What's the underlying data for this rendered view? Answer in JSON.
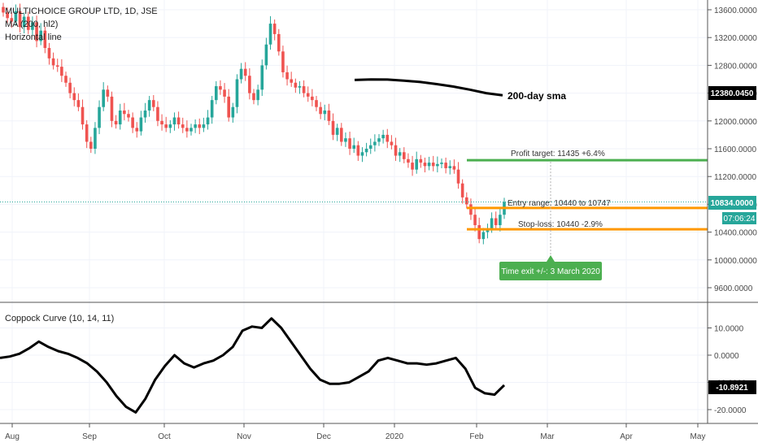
{
  "legend": {
    "symbol_line": "MULTICHOICE GROUP LTD, 1D, JSE",
    "ma_line": "MA (200, hl2)",
    "hline_label": "Horizontal line"
  },
  "indicator_label": "Coppock Curve (10, 14, 11)",
  "annotations": {
    "sma_label": "200-day sma",
    "profit": "Profit target: 11435 +6.4%",
    "entry": "Entry range: 10440 to 10747",
    "stop": "Stop-loss: 10440 -2.9%",
    "exit": "Time exit +/-: 3 March 2020"
  },
  "badges": {
    "sma_value": "12380.0450",
    "last_price": "10834.0000",
    "countdown": "07:06:24",
    "coppock_value": "-10.8921"
  },
  "colors": {
    "up": "#26a69a",
    "down": "#ef5350",
    "profit_line": "#4caf50",
    "entry_stop_line": "#ff9800",
    "exit_badge": "#4caf50"
  },
  "chart_data": [
    {
      "type": "candlestick",
      "title": "MULTICHOICE GROUP LTD, 1D, JSE",
      "x_ticks": [
        "Aug",
        "Sep",
        "Oct",
        "Nov",
        "Dec",
        "2020",
        "Feb",
        "Mar",
        "Apr",
        "May"
      ],
      "y_ticks": [
        "13600.0000",
        "13200.0000",
        "12800.0000",
        "12400.0000",
        "12000.0000",
        "11600.0000",
        "11200.0000",
        "10800.0000",
        "10400.0000",
        "10000.0000",
        "9600.0000"
      ],
      "ylim": [
        9500,
        13650
      ],
      "levels": {
        "profit_target": 11435,
        "entry_upper": 10747,
        "stop_loss": 10440,
        "last_price": 10834
      },
      "close": [
        13560,
        13480,
        13430,
        13580,
        13350,
        13500,
        13310,
        13420,
        13150,
        13300,
        13050,
        12900,
        12800,
        12780,
        12650,
        12550,
        12400,
        12300,
        12200,
        11950,
        11700,
        11600,
        11900,
        12200,
        12450,
        12350,
        12000,
        11950,
        12150,
        12100,
        12050,
        11900,
        11850,
        12050,
        12150,
        12300,
        12200,
        12000,
        11950,
        11900,
        11950,
        12050,
        11950,
        11900,
        11850,
        11900,
        11950,
        11900,
        11950,
        12050,
        12300,
        12500,
        12450,
        12350,
        12050,
        12200,
        12600,
        12750,
        12650,
        12400,
        12300,
        12450,
        12800,
        13100,
        13400,
        13250,
        13000,
        12700,
        12600,
        12550,
        12480,
        12500,
        12400,
        12350,
        12300,
        12200,
        12100,
        12150,
        12000,
        11800,
        11900,
        11700,
        11750,
        11600,
        11650,
        11500,
        11550,
        11600,
        11650,
        11700,
        11750,
        11800,
        11700,
        11650,
        11500,
        11550,
        11450,
        11400,
        11300,
        11450,
        11400,
        11350,
        11400,
        11350,
        11380,
        11400,
        11320,
        11350,
        11300,
        11100,
        10900,
        10800,
        10650,
        10500,
        10300,
        10400,
        10450,
        10600,
        10500,
        10650,
        10834
      ],
      "sma200": [
        12590,
        12598,
        12595,
        12580,
        12560,
        12530,
        12495,
        12450,
        12400,
        12370
      ],
      "sma200_start_index": 75
    },
    {
      "type": "line",
      "title": "Coppock Curve (10, 14, 11)",
      "y_ticks": [
        "10.0000",
        "0.0000",
        "-10.0000",
        "-20.0000"
      ],
      "ylim": [
        -21,
        16
      ],
      "values": [
        -1,
        -0.5,
        0.5,
        2.5,
        5,
        3,
        1.5,
        0.5,
        -1,
        -3,
        -6,
        -10,
        -15,
        -19,
        -21,
        -16,
        -9,
        -4,
        0,
        -3,
        -4.5,
        -3,
        -2,
        0,
        3,
        9,
        10.5,
        10,
        13.5,
        10,
        5,
        0,
        -5,
        -9,
        -10.5,
        -10.5,
        -10,
        -8,
        -6,
        -2,
        -1,
        -2,
        -3,
        -3,
        -3.5,
        -3,
        -2,
        -1,
        -5,
        -12,
        -14,
        -14.5,
        -11
      ]
    }
  ]
}
